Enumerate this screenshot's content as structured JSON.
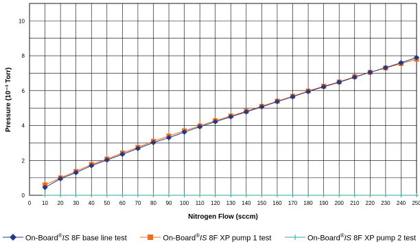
{
  "chart_data": {
    "type": "line",
    "xlabel": "Nitrogen Flow (sccm)",
    "ylabel": "Pressure (10⁻³ Torr)",
    "xlim": [
      0,
      250
    ],
    "ylim": [
      0,
      11
    ],
    "xticks": [
      0,
      10,
      20,
      30,
      40,
      50,
      60,
      70,
      80,
      90,
      100,
      110,
      120,
      130,
      140,
      150,
      160,
      170,
      180,
      190,
      200,
      210,
      220,
      230,
      240,
      250
    ],
    "yticks": [
      0,
      2,
      4,
      6,
      8,
      10
    ],
    "grid": true,
    "legend_position": "bottom",
    "x": [
      10,
      20,
      30,
      40,
      50,
      60,
      70,
      80,
      90,
      100,
      110,
      120,
      130,
      140,
      150,
      160,
      170,
      180,
      190,
      200,
      210,
      220,
      230,
      240,
      250
    ],
    "series": [
      {
        "name": "On-Board® IS 8F base line test",
        "legend_prefix": "On-Board",
        "legend_mark": "®",
        "legend_is": "IS",
        "legend_suffix": " 8F base line test",
        "color": "#1f3a8a",
        "marker": "diamond",
        "values": [
          0.45,
          0.95,
          1.3,
          1.7,
          2.02,
          2.35,
          2.68,
          3.02,
          3.3,
          3.62,
          3.93,
          4.22,
          4.5,
          4.78,
          5.07,
          5.37,
          5.65,
          5.95,
          6.22,
          6.48,
          6.77,
          7.05,
          7.32,
          7.6,
          7.9
        ]
      },
      {
        "name": "On-Board® IS 8F XP pump 1 test",
        "legend_prefix": "On-Board",
        "legend_mark": "®",
        "legend_is": "IS",
        "legend_suffix": " 8F XP pump 1 test",
        "color": "#f26b21",
        "marker": "square",
        "values": [
          0.6,
          1.0,
          1.37,
          1.77,
          2.08,
          2.43,
          2.75,
          3.1,
          3.4,
          3.7,
          3.98,
          4.28,
          4.55,
          4.82,
          5.1,
          5.4,
          5.68,
          5.98,
          6.25,
          6.5,
          6.8,
          7.05,
          7.3,
          7.55,
          7.8
        ]
      },
      {
        "name": "On-Board® IS 8F XP pump 2 test",
        "legend_prefix": "On-Board",
        "legend_mark": "®",
        "legend_is": "IS",
        "legend_suffix": " 8F XP pump 2 test",
        "color": "#2aa89a",
        "marker": "plus",
        "values": [
          0,
          0,
          0,
          0,
          0,
          0,
          0,
          0,
          0,
          0,
          0,
          0,
          0,
          0,
          0,
          0,
          0,
          0,
          0,
          0,
          0,
          0,
          0,
          0,
          0
        ]
      }
    ]
  }
}
